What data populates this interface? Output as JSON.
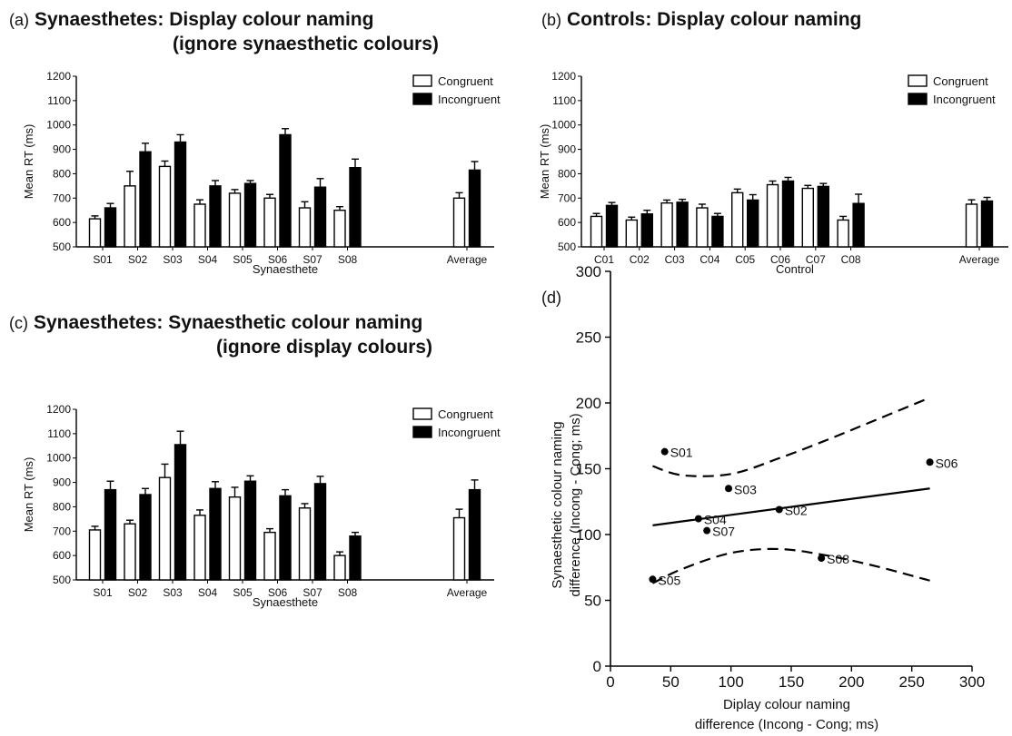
{
  "panels": {
    "a": {
      "letter": "(a)",
      "title": "Synaesthetes: Display colour naming",
      "subtitle": "(ignore synaesthetic colours)"
    },
    "b": {
      "letter": "(b)",
      "title": "Controls: Display colour naming"
    },
    "c": {
      "letter": "(c)",
      "title": "Synaesthetes: Synaesthetic colour naming",
      "subtitle": "(ignore display colours)"
    },
    "d": {
      "letter": "(d)"
    }
  },
  "chart_data": [
    {
      "id": "a",
      "type": "bar",
      "xlabel": "Synaesthete",
      "ylabel": "Mean RT (ms)",
      "ylim": [
        500,
        1200
      ],
      "yticks": [
        500,
        600,
        700,
        800,
        900,
        1000,
        1100,
        1200
      ],
      "legend_position": "top-right",
      "categories": [
        "S01",
        "S02",
        "S03",
        "S04",
        "S05",
        "S06",
        "S07",
        "S08",
        "Average"
      ],
      "series": [
        {
          "name": "Congruent",
          "color": "#ffffff",
          "values": [
            615,
            750,
            830,
            675,
            720,
            700,
            660,
            650,
            700
          ],
          "errors": [
            12,
            60,
            22,
            18,
            15,
            15,
            25,
            15,
            22
          ]
        },
        {
          "name": "Incongruent",
          "color": "#000000",
          "values": [
            660,
            890,
            930,
            750,
            760,
            960,
            745,
            825,
            815
          ],
          "errors": [
            18,
            35,
            30,
            22,
            12,
            25,
            35,
            35,
            35
          ]
        }
      ]
    },
    {
      "id": "b",
      "type": "bar",
      "xlabel": "Control",
      "ylabel": "Mean RT (ms)",
      "ylim": [
        500,
        1200
      ],
      "yticks": [
        500,
        600,
        700,
        800,
        900,
        1000,
        1100,
        1200
      ],
      "legend_position": "top-right",
      "categories": [
        "C01",
        "C02",
        "C03",
        "C04",
        "C05",
        "C06",
        "C07",
        "C08",
        "Average"
      ],
      "series": [
        {
          "name": "Congruent",
          "color": "#ffffff",
          "values": [
            625,
            610,
            680,
            660,
            722,
            755,
            740,
            610,
            675
          ],
          "errors": [
            12,
            12,
            12,
            15,
            15,
            15,
            12,
            15,
            18
          ]
        },
        {
          "name": "Incongruent",
          "color": "#000000",
          "values": [
            670,
            635,
            683,
            625,
            692,
            770,
            748,
            678,
            688
          ],
          "errors": [
            12,
            15,
            12,
            12,
            22,
            15,
            12,
            38,
            15
          ]
        }
      ]
    },
    {
      "id": "c",
      "type": "bar",
      "xlabel": "Synaesthete",
      "ylabel": "Mean RT (ms)",
      "ylim": [
        500,
        1200
      ],
      "yticks": [
        500,
        600,
        700,
        800,
        900,
        1000,
        1100,
        1200
      ],
      "legend_position": "top-right",
      "categories": [
        "S01",
        "S02",
        "S03",
        "S04",
        "S05",
        "S06",
        "S07",
        "S08",
        "Average"
      ],
      "series": [
        {
          "name": "Congruent",
          "color": "#ffffff",
          "values": [
            705,
            730,
            920,
            765,
            840,
            695,
            795,
            600,
            755
          ],
          "errors": [
            15,
            15,
            55,
            22,
            40,
            15,
            18,
            15,
            35
          ]
        },
        {
          "name": "Incongruent",
          "color": "#000000",
          "values": [
            870,
            850,
            1055,
            875,
            905,
            845,
            895,
            680,
            870
          ],
          "errors": [
            35,
            25,
            55,
            28,
            22,
            25,
            30,
            15,
            40
          ]
        }
      ]
    },
    {
      "id": "d",
      "type": "scatter",
      "xlabel": "Diplay colour naming difference (Incong - Cong; ms)",
      "ylabel": "Synaesthetic colour naming difference (Incong - Cong; ms)",
      "xlim": [
        0,
        300
      ],
      "ylim": [
        0,
        300
      ],
      "xticks": [
        0,
        50,
        100,
        150,
        200,
        250,
        300
      ],
      "yticks": [
        0,
        50,
        100,
        150,
        200,
        250,
        300
      ],
      "points": [
        {
          "label": "S01",
          "x": 45,
          "y": 163
        },
        {
          "label": "S02",
          "x": 140,
          "y": 119
        },
        {
          "label": "S03",
          "x": 98,
          "y": 135
        },
        {
          "label": "S04",
          "x": 73,
          "y": 112
        },
        {
          "label": "S05",
          "x": 35,
          "y": 66
        },
        {
          "label": "S06",
          "x": 265,
          "y": 155
        },
        {
          "label": "S07",
          "x": 80,
          "y": 103
        },
        {
          "label": "S08",
          "x": 175,
          "y": 82
        }
      ],
      "regression": {
        "x": [
          35,
          265
        ],
        "y": [
          107,
          135
        ]
      },
      "confidence_upper": {
        "x": [
          35,
          60,
          100,
          140,
          180,
          220,
          265
        ],
        "y": [
          152,
          145,
          146,
          158,
          172,
          187,
          204
        ]
      },
      "confidence_lower": {
        "x": [
          35,
          60,
          100,
          140,
          180,
          220,
          265
        ],
        "y": [
          63,
          74,
          86,
          89,
          84,
          76,
          65
        ]
      }
    }
  ]
}
